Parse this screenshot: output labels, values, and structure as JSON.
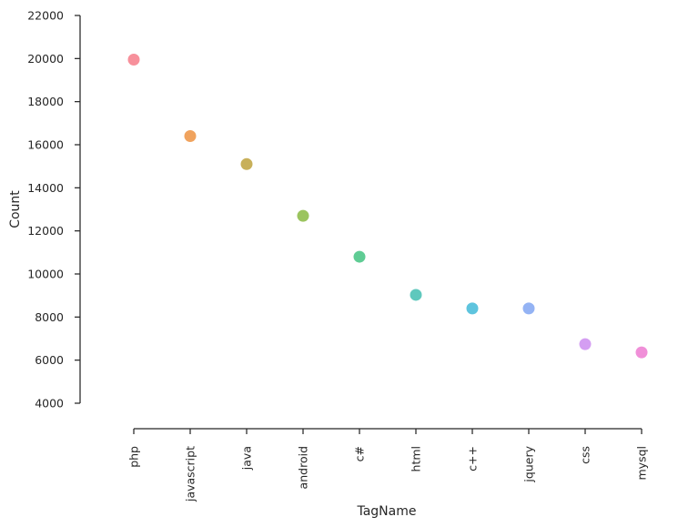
{
  "chart_data": {
    "type": "scatter",
    "xlabel": "TagName",
    "ylabel": "Count",
    "categories": [
      "php",
      "javascript",
      "java",
      "android",
      "c#",
      "html",
      "c++",
      "jquery",
      "css",
      "mysql"
    ],
    "values": [
      19950,
      16400,
      15100,
      12700,
      10800,
      9030,
      8400,
      8400,
      6740,
      6360
    ],
    "ylim": [
      4000,
      22000
    ],
    "yticks": [
      4000,
      6000,
      8000,
      10000,
      12000,
      14000,
      16000,
      18000,
      20000,
      22000
    ],
    "grid": false,
    "colors": [
      "#f7909b",
      "#f0a35e",
      "#c8b05a",
      "#9bc45e",
      "#5fcc94",
      "#5fc8bd",
      "#5ec4de",
      "#94b3f4",
      "#d49ef2",
      "#f08fd8"
    ]
  }
}
